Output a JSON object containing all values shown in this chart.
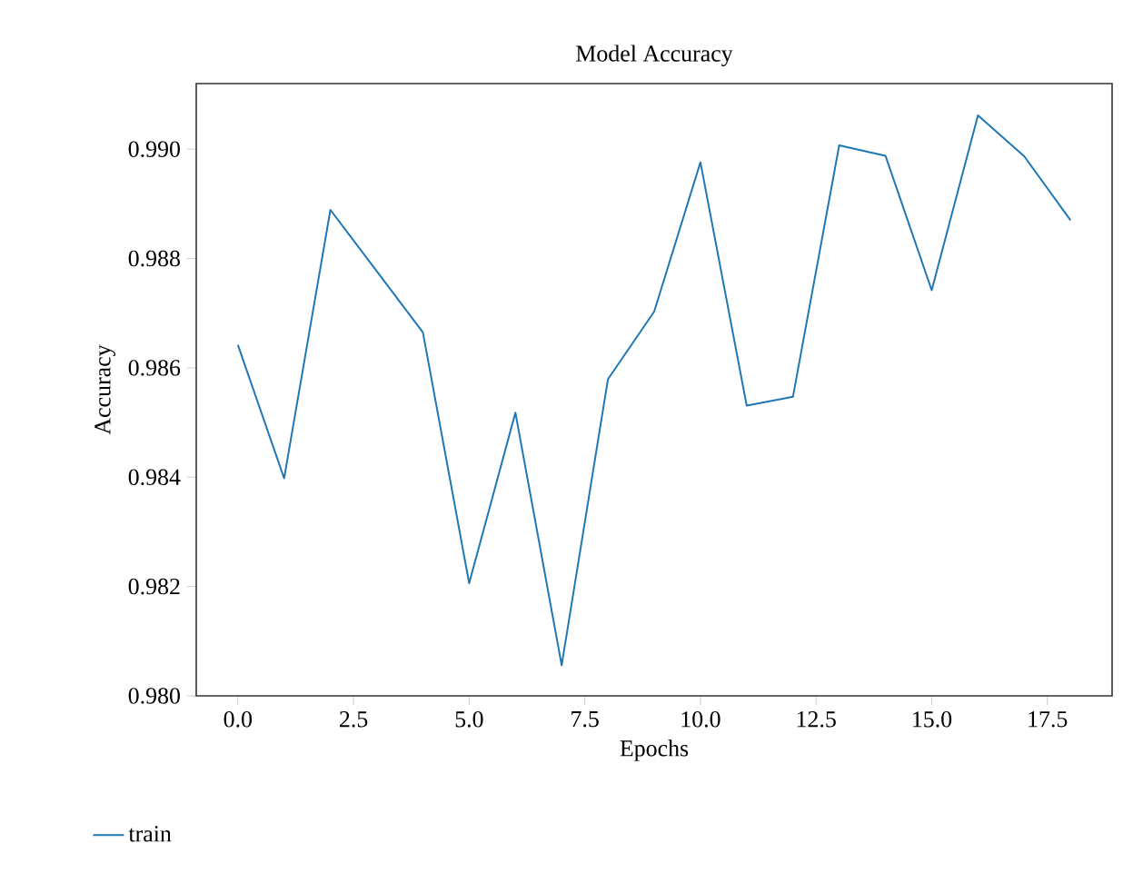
{
  "chart_data": {
    "type": "line",
    "title": "Model Accuracy",
    "xlabel": "Epochs",
    "ylabel": "Accuracy",
    "x": [
      0,
      1,
      2,
      3,
      4,
      5,
      6,
      7,
      8,
      9,
      10,
      11,
      12,
      13,
      14,
      15,
      16,
      17,
      18
    ],
    "series": [
      {
        "name": "train",
        "color": "#1f77b4",
        "values": [
          0.98642,
          0.98398,
          0.98889,
          0.98777,
          0.98665,
          0.98206,
          0.98518,
          0.98056,
          0.98579,
          0.98703,
          0.98976,
          0.98531,
          0.98547,
          0.99007,
          0.98988,
          0.98742,
          0.99062,
          0.98987,
          0.9887
        ]
      }
    ],
    "xlim": [
      -0.9,
      18.9
    ],
    "ylim": [
      0.98,
      0.9912
    ],
    "xticks": [
      {
        "value": 0,
        "label": "0.0"
      },
      {
        "value": 2.5,
        "label": "2.5"
      },
      {
        "value": 5,
        "label": "5.0"
      },
      {
        "value": 7.5,
        "label": "7.5"
      },
      {
        "value": 10,
        "label": "10.0"
      },
      {
        "value": 12.5,
        "label": "12.5"
      },
      {
        "value": 15,
        "label": "15.0"
      },
      {
        "value": 17.5,
        "label": "17.5"
      }
    ],
    "yticks": [
      {
        "value": 0.98,
        "label": "0.980"
      },
      {
        "value": 0.982,
        "label": "0.982"
      },
      {
        "value": 0.984,
        "label": "0.984"
      },
      {
        "value": 0.986,
        "label": "0.986"
      },
      {
        "value": 0.988,
        "label": "0.988"
      },
      {
        "value": 0.99,
        "label": "0.990"
      }
    ],
    "grid": false,
    "legend": "bottom left",
    "line_style": "solid",
    "marker": "none"
  }
}
